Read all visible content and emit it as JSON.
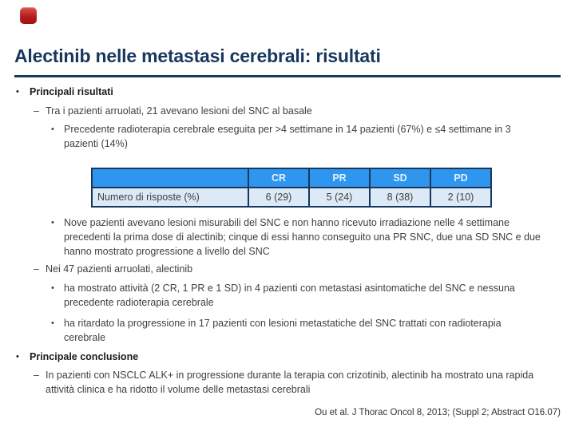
{
  "slide": {
    "title": "Alectinib nelle metastasi cerebrali: risultati",
    "citation": "Ou et al. J Thorac Oncol 8, 2013; (Suppl 2; Abstract O16.07)"
  },
  "markers": {
    "dot": "•",
    "dash": "–"
  },
  "bullets": {
    "l1_results": "Principali risultati",
    "l2_tra": "Tra i pazienti arruolati, 21 avevano lesioni del SNC al basale",
    "l3_precedente": "Precedente radioterapia cerebrale eseguita per >4 settimane in 14 pazienti (67%) e ≤4 settimane in 3 pazienti (14%)",
    "l3_nove": "Nove pazienti avevano lesioni misurabili del SNC e non hanno ricevuto irradiazione nelle 4 settimane precedenti la prima dose di alectinib; cinque di essi hanno conseguito una PR SNC, due una SD SNC e due hanno mostrato progressione a livello del SNC",
    "l2_nei": "Nei 47 pazienti arruolati, alectinib",
    "l3_attivita": "ha mostrato attività (2 CR, 1 PR e 1 SD) in 4 pazienti con metastasi asintomatiche del SNC e nessuna precedente radioterapia cerebrale",
    "l3_ritardato": "ha ritardato la progressione in 17 pazienti con lesioni metastatiche del SNC trattati con radioterapia cerebrale",
    "l1_conclusion": "Principale conclusione",
    "l2_conclusion": "In pazienti con NSCLC ALK+ in progressione durante la terapia con crizotinib, alectinib ha mostrato una rapida attività clinica e ha ridotto il volume delle metastasi cerebrali"
  },
  "table": {
    "row_label": "Numero di risposte (%)",
    "columns": [
      "CR",
      "PR",
      "SD",
      "PD"
    ],
    "values": [
      "6 (29)",
      "5 (24)",
      "8 (38)",
      "2 (10)"
    ]
  },
  "colors": {
    "title_navy": "#17375d",
    "table_header_blue": "#2f96f0",
    "table_row_blue": "#dce9f7",
    "table_border_navy": "#17375d",
    "badge_red": "#b61a1a"
  }
}
